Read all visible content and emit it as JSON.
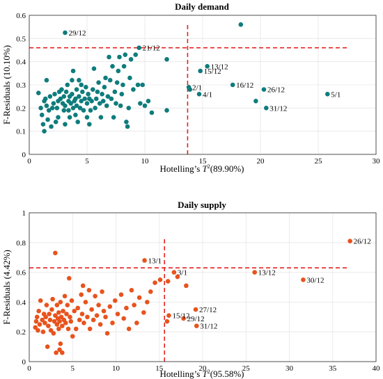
{
  "chart_data": [
    {
      "type": "scatter",
      "title": "Daily demand",
      "xlabel": "Hotelling's T²(89.90%)",
      "xlabel_prefix": "Hotelling’s ",
      "xlabel_var": "T",
      "xlabel_sup": "2",
      "xlabel_suffix": "(89.90%)",
      "ylabel": "F-Residuals (10.10%)",
      "xlim": [
        0,
        30
      ],
      "ylim": [
        0,
        0.6
      ],
      "xticks": [
        "0",
        "5",
        "10",
        "15",
        "20",
        "25",
        "30"
      ],
      "yticks": [
        "0",
        "0.1",
        "0.2",
        "0.3",
        "0.4",
        "0.5",
        "0.6"
      ],
      "grid": true,
      "color": "#0f7c7c",
      "threshold_color": "#e62020",
      "limits": {
        "t2": 13.7,
        "f": 0.46
      },
      "points": [
        [
          0.8,
          0.265
        ],
        [
          1.0,
          0.2
        ],
        [
          1.1,
          0.17
        ],
        [
          1.2,
          0.13
        ],
        [
          1.3,
          0.1
        ],
        [
          1.3,
          0.23
        ],
        [
          1.4,
          0.24
        ],
        [
          1.5,
          0.21
        ],
        [
          1.5,
          0.32
        ],
        [
          1.6,
          0.15
        ],
        [
          1.7,
          0.19
        ],
        [
          1.8,
          0.25
        ],
        [
          1.9,
          0.12
        ],
        [
          2.0,
          0.2
        ],
        [
          2.1,
          0.22
        ],
        [
          2.2,
          0.26
        ],
        [
          2.3,
          0.14
        ],
        [
          2.4,
          0.2
        ],
        [
          2.5,
          0.16
        ],
        [
          2.5,
          0.23
        ],
        [
          2.6,
          0.27
        ],
        [
          2.7,
          0.24
        ],
        [
          2.8,
          0.28
        ],
        [
          2.9,
          0.22
        ],
        [
          3.0,
          0.19
        ],
        [
          3.0,
          0.25
        ],
        [
          3.1,
          0.13
        ],
        [
          3.1,
          0.21
        ],
        [
          3.2,
          0.27
        ],
        [
          3.3,
          0.3
        ],
        [
          3.4,
          0.23
        ],
        [
          3.4,
          0.19
        ],
        [
          3.5,
          0.16
        ],
        [
          3.5,
          0.25
        ],
        [
          3.6,
          0.22
        ],
        [
          3.7,
          0.26
        ],
        [
          3.7,
          0.32
        ],
        [
          3.8,
          0.2
        ],
        [
          3.8,
          0.36
        ],
        [
          3.9,
          0.23
        ],
        [
          4.0,
          0.17
        ],
        [
          4.0,
          0.24
        ],
        [
          4.1,
          0.28
        ],
        [
          4.1,
          0.21
        ],
        [
          4.2,
          0.14
        ],
        [
          4.3,
          0.25
        ],
        [
          4.3,
          0.32
        ],
        [
          4.4,
          0.2
        ],
        [
          4.5,
          0.23
        ],
        [
          4.5,
          0.3
        ],
        [
          4.6,
          0.27
        ],
        [
          4.7,
          0.19
        ],
        [
          4.8,
          0.24
        ],
        [
          4.9,
          0.29
        ],
        [
          5.0,
          0.16
        ],
        [
          5.0,
          0.22
        ],
        [
          5.1,
          0.26
        ],
        [
          5.2,
          0.13
        ],
        [
          5.2,
          0.24
        ],
        [
          5.3,
          0.19
        ],
        [
          5.4,
          0.23
        ],
        [
          5.5,
          0.28
        ],
        [
          5.6,
          0.37
        ],
        [
          5.7,
          0.2
        ],
        [
          5.8,
          0.24
        ],
        [
          5.9,
          0.27
        ],
        [
          6.0,
          0.31
        ],
        [
          6.1,
          0.22
        ],
        [
          6.2,
          0.16
        ],
        [
          6.3,
          0.26
        ],
        [
          6.4,
          0.23
        ],
        [
          6.5,
          0.29
        ],
        [
          6.6,
          0.33
        ],
        [
          6.7,
          0.21
        ],
        [
          6.8,
          0.25
        ],
        [
          6.9,
          0.42
        ],
        [
          7.0,
          0.32
        ],
        [
          7.1,
          0.24
        ],
        [
          7.2,
          0.38
        ],
        [
          7.3,
          0.16
        ],
        [
          7.4,
          0.27
        ],
        [
          7.5,
          0.22
        ],
        [
          7.6,
          0.31
        ],
        [
          7.7,
          0.36
        ],
        [
          7.8,
          0.42
        ],
        [
          7.9,
          0.21
        ],
        [
          8.0,
          0.26
        ],
        [
          8.1,
          0.3
        ],
        [
          8.2,
          0.38
        ],
        [
          8.3,
          0.43
        ],
        [
          8.4,
          0.14
        ],
        [
          8.5,
          0.12
        ],
        [
          8.6,
          0.2
        ],
        [
          8.7,
          0.33
        ],
        [
          8.8,
          0.41
        ],
        [
          9.0,
          0.28
        ],
        [
          9.2,
          0.43
        ],
        [
          9.4,
          0.3
        ],
        [
          9.6,
          0.22
        ],
        [
          9.8,
          0.3
        ],
        [
          10.0,
          0.21
        ],
        [
          10.3,
          0.23
        ],
        [
          10.6,
          0.18
        ],
        [
          11.9,
          0.41
        ],
        [
          11.9,
          0.19
        ]
      ],
      "labeled_points": [
        {
          "x": 3.1,
          "y": 0.525,
          "label": "29/12"
        },
        {
          "x": 9.5,
          "y": 0.46,
          "label": "21/12"
        },
        {
          "x": 15.4,
          "y": 0.38,
          "label": "13/12"
        },
        {
          "x": 14.8,
          "y": 0.36,
          "label": "15/12"
        },
        {
          "x": 13.8,
          "y": 0.29,
          "label": "2/1"
        },
        {
          "x": 14.7,
          "y": 0.26,
          "label": "4/1"
        },
        {
          "x": 17.6,
          "y": 0.3,
          "label": "16/12"
        },
        {
          "x": 20.3,
          "y": 0.28,
          "label": "26/12"
        },
        {
          "x": 20.5,
          "y": 0.2,
          "label": "31/12"
        },
        {
          "x": 25.8,
          "y": 0.26,
          "label": "5/1"
        }
      ],
      "extra_points": [
        [
          18.3,
          0.56
        ],
        [
          19.6,
          0.23
        ],
        [
          13.9,
          0.28
        ]
      ]
    },
    {
      "type": "scatter",
      "title": "Daily supply",
      "xlabel": "Hotelling's T²(95.58%)",
      "xlabel_prefix": "Hotelling’s ",
      "xlabel_var": "T",
      "xlabel_sup": "2",
      "xlabel_suffix": "(95.58%)",
      "ylabel": "F-Residuals (4.42%)",
      "xlim": [
        0,
        40
      ],
      "ylim": [
        0,
        1
      ],
      "xticks": [
        "0",
        "5",
        "10",
        "15",
        "20",
        "25",
        "30",
        "35",
        "40"
      ],
      "yticks": [
        "0",
        "0.2",
        "0.4",
        "0.6",
        "0.8",
        "1"
      ],
      "grid": true,
      "color": "#e8531d",
      "threshold_color": "#e62020",
      "limits": {
        "t2": 15.6,
        "f": 0.63
      },
      "points": [
        [
          0.7,
          0.23
        ],
        [
          0.8,
          0.27
        ],
        [
          0.9,
          0.3
        ],
        [
          1.0,
          0.21
        ],
        [
          1.1,
          0.34
        ],
        [
          1.2,
          0.25
        ],
        [
          1.3,
          0.41
        ],
        [
          1.5,
          0.28
        ],
        [
          1.6,
          0.2
        ],
        [
          1.7,
          0.32
        ],
        [
          1.8,
          0.26
        ],
        [
          1.9,
          0.3
        ],
        [
          2.0,
          0.38
        ],
        [
          2.1,
          0.1
        ],
        [
          2.2,
          0.24
        ],
        [
          2.3,
          0.32
        ],
        [
          2.4,
          0.28
        ],
        [
          2.5,
          0.21
        ],
        [
          2.6,
          0.35
        ],
        [
          2.7,
          0.42
        ],
        [
          2.8,
          0.19
        ],
        [
          2.9,
          0.27
        ],
        [
          3.0,
          0.31
        ],
        [
          3.0,
          0.73
        ],
        [
          3.1,
          0.06
        ],
        [
          3.2,
          0.25
        ],
        [
          3.2,
          0.38
        ],
        [
          3.3,
          0.29
        ],
        [
          3.4,
          0.22
        ],
        [
          3.4,
          0.33
        ],
        [
          3.5,
          0.08
        ],
        [
          3.5,
          0.27
        ],
        [
          3.6,
          0.4
        ],
        [
          3.6,
          0.12
        ],
        [
          3.7,
          0.3
        ],
        [
          3.8,
          0.06
        ],
        [
          3.8,
          0.24
        ],
        [
          3.9,
          0.34
        ],
        [
          4.0,
          0.28
        ],
        [
          4.1,
          0.44
        ],
        [
          4.2,
          0.26
        ],
        [
          4.3,
          0.32
        ],
        [
          4.4,
          0.38
        ],
        [
          4.5,
          0.22
        ],
        [
          4.6,
          0.56
        ],
        [
          4.7,
          0.3
        ],
        [
          4.8,
          0.27
        ],
        [
          4.9,
          0.41
        ],
        [
          5.0,
          0.17
        ],
        [
          5.2,
          0.34
        ],
        [
          5.4,
          0.22
        ],
        [
          5.6,
          0.36
        ],
        [
          5.8,
          0.28
        ],
        [
          6.0,
          0.45
        ],
        [
          6.1,
          0.32
        ],
        [
          6.2,
          0.51
        ],
        [
          6.3,
          0.26
        ],
        [
          6.5,
          0.4
        ],
        [
          6.7,
          0.3
        ],
        [
          6.9,
          0.48
        ],
        [
          7.0,
          0.22
        ],
        [
          7.2,
          0.35
        ],
        [
          7.4,
          0.28
        ],
        [
          7.6,
          0.44
        ],
        [
          7.8,
          0.31
        ],
        [
          8.0,
          0.38
        ],
        [
          8.2,
          0.25
        ],
        [
          8.4,
          0.47
        ],
        [
          8.6,
          0.34
        ],
        [
          8.8,
          0.3
        ],
        [
          9.0,
          0.19
        ],
        [
          9.3,
          0.37
        ],
        [
          9.6,
          0.26
        ],
        [
          9.9,
          0.41
        ],
        [
          10.2,
          0.32
        ],
        [
          10.6,
          0.45
        ],
        [
          10.9,
          0.29
        ],
        [
          11.2,
          0.36
        ],
        [
          11.5,
          0.22
        ],
        [
          11.8,
          0.48
        ],
        [
          12.1,
          0.38
        ],
        [
          12.4,
          0.26
        ],
        [
          12.7,
          0.43
        ],
        [
          13.2,
          0.33
        ],
        [
          13.6,
          0.4
        ],
        [
          14.0,
          0.47
        ],
        [
          14.5,
          0.53
        ],
        [
          15.1,
          0.55
        ],
        [
          16.0,
          0.54
        ],
        [
          17.1,
          0.57
        ],
        [
          18.1,
          0.51
        ]
      ],
      "labeled_points": [
        {
          "x": 13.3,
          "y": 0.68,
          "label": "13/1"
        },
        {
          "x": 16.7,
          "y": 0.6,
          "label": "3/1"
        },
        {
          "x": 26.0,
          "y": 0.6,
          "label": "13/12"
        },
        {
          "x": 31.6,
          "y": 0.55,
          "label": "30/12"
        },
        {
          "x": 37.0,
          "y": 0.81,
          "label": "26/12"
        },
        {
          "x": 19.2,
          "y": 0.35,
          "label": "27/12"
        },
        {
          "x": 16.1,
          "y": 0.31,
          "label": "15/12"
        },
        {
          "x": 17.8,
          "y": 0.29,
          "label": "29/12"
        },
        {
          "x": 19.3,
          "y": 0.24,
          "label": "31/12"
        }
      ],
      "extra_points": [
        [
          15.9,
          0.27
        ]
      ]
    }
  ]
}
